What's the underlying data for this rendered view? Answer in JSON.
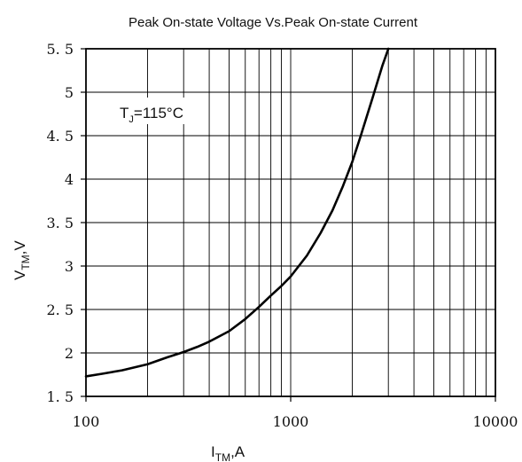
{
  "colors": {
    "background": "#ffffff",
    "axis": "#000000",
    "grid": "#000000",
    "curve": "#000000",
    "annotation_box": "#ffffff"
  },
  "chart_data": {
    "type": "line",
    "title": "Peak On-state Voltage Vs.Peak On-state Current",
    "xlabel": {
      "main": "I",
      "sub": "TM",
      "suffix": ",A"
    },
    "ylabel": {
      "main": "V",
      "sub": "TM",
      "suffix": ",V"
    },
    "x_scale": "log",
    "xlim": [
      100,
      10000
    ],
    "ylim": [
      1.5,
      5.5
    ],
    "grid": true,
    "x_ticks": [
      {
        "value": 100,
        "label": "100"
      },
      {
        "value": 1000,
        "label": "1000"
      },
      {
        "value": 10000,
        "label": "10000"
      }
    ],
    "y_ticks": [
      {
        "value": 1.5,
        "label": "1. 5"
      },
      {
        "value": 2,
        "label": "2"
      },
      {
        "value": 2.5,
        "label": "2. 5"
      },
      {
        "value": 3,
        "label": "3"
      },
      {
        "value": 3.5,
        "label": "3. 5"
      },
      {
        "value": 4,
        "label": "4"
      },
      {
        "value": 4.5,
        "label": "4. 5"
      },
      {
        "value": 5,
        "label": "5"
      },
      {
        "value": 5.5,
        "label": "5. 5"
      }
    ],
    "series": [
      {
        "x": [
          100,
          120,
          150,
          200,
          250,
          300,
          350,
          400,
          500,
          600,
          700,
          800,
          900,
          1000,
          1200,
          1400,
          1600,
          1800,
          2000,
          2200,
          2500,
          2800,
          3000
        ],
        "y": [
          1.73,
          1.76,
          1.8,
          1.87,
          1.95,
          2.01,
          2.07,
          2.13,
          2.25,
          2.39,
          2.53,
          2.66,
          2.77,
          2.88,
          3.12,
          3.38,
          3.64,
          3.92,
          4.2,
          4.5,
          4.92,
          5.3,
          5.5
        ]
      }
    ],
    "annotation": {
      "main": "T",
      "sub": "J",
      "suffix": "=115°C"
    }
  }
}
